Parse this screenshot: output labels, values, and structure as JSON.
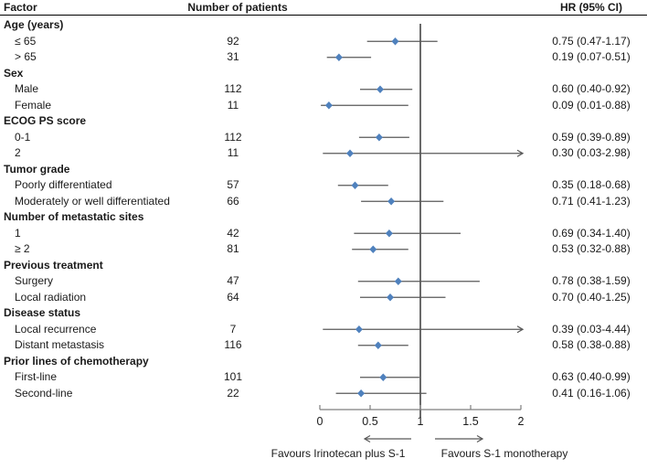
{
  "header": {
    "factor": "Factor",
    "patients": "Number of patients",
    "hr": "HR (95% CI)"
  },
  "colors": {
    "marker": "#4f81bd",
    "ci_line": "#595959",
    "ref_line": "#2b2b2b",
    "axis": "#7f7f7f",
    "arrow": "#595959",
    "text": "#1a1a1a"
  },
  "chart_data": {
    "type": "forest",
    "x_axis": {
      "min": 0,
      "max": 2,
      "ticks": [
        0,
        0.5,
        1,
        1.5,
        2
      ],
      "tick_labels": [
        "0",
        "0.5",
        "1",
        "1.5",
        "2"
      ],
      "ref_line": 1
    },
    "favours_left": "Favours Irinotecan plus S-1",
    "favours_right": "Favours S-1 monotherapy",
    "rows": [
      {
        "kind": "group",
        "label": "Age (years)"
      },
      {
        "kind": "item",
        "label": "≤ 65",
        "n": "92",
        "hr": 0.75,
        "lo": 0.47,
        "hi": 1.17,
        "hr_text": "0.75 (0.47-1.17)"
      },
      {
        "kind": "item",
        "label": "> 65",
        "n": "31",
        "hr": 0.19,
        "lo": 0.07,
        "hi": 0.51,
        "hr_text": "0.19 (0.07-0.51)"
      },
      {
        "kind": "group",
        "label": "Sex"
      },
      {
        "kind": "item",
        "label": "Male",
        "n": "112",
        "hr": 0.6,
        "lo": 0.4,
        "hi": 0.92,
        "hr_text": "0.60 (0.40-0.92)"
      },
      {
        "kind": "item",
        "label": "Female",
        "n": "11",
        "hr": 0.09,
        "lo": 0.01,
        "hi": 0.88,
        "hr_text": "0.09 (0.01-0.88)"
      },
      {
        "kind": "group",
        "label": "ECOG PS score"
      },
      {
        "kind": "item",
        "label": "0-1",
        "n": "112",
        "hr": 0.59,
        "lo": 0.39,
        "hi": 0.89,
        "hr_text": "0.59 (0.39-0.89)"
      },
      {
        "kind": "item",
        "label": "2",
        "n": "11",
        "hr": 0.3,
        "lo": 0.03,
        "hi": 2.98,
        "hr_text": "0.30 (0.03-2.98)"
      },
      {
        "kind": "group",
        "label": "Tumor grade"
      },
      {
        "kind": "item",
        "label": "Poorly differentiated",
        "n": "57",
        "hr": 0.35,
        "lo": 0.18,
        "hi": 0.68,
        "hr_text": "0.35 (0.18-0.68)"
      },
      {
        "kind": "item",
        "label": "Moderately or well differentiated",
        "n": "66",
        "hr": 0.71,
        "lo": 0.41,
        "hi": 1.23,
        "hr_text": "0.71 (0.41-1.23)"
      },
      {
        "kind": "group",
        "label": "Number of metastatic sites"
      },
      {
        "kind": "item",
        "label": "1",
        "n": "42",
        "hr": 0.69,
        "lo": 0.34,
        "hi": 1.4,
        "hr_text": "0.69 (0.34-1.40)"
      },
      {
        "kind": "item",
        "label": "≥ 2",
        "n": "81",
        "hr": 0.53,
        "lo": 0.32,
        "hi": 0.88,
        "hr_text": "0.53 (0.32-0.88)"
      },
      {
        "kind": "group",
        "label": "Previous treatment"
      },
      {
        "kind": "item",
        "label": "Surgery",
        "n": "47",
        "hr": 0.78,
        "lo": 0.38,
        "hi": 1.59,
        "hr_text": "0.78 (0.38-1.59)"
      },
      {
        "kind": "item",
        "label": "Local radiation",
        "n": "64",
        "hr": 0.7,
        "lo": 0.4,
        "hi": 1.25,
        "hr_text": "0.70 (0.40-1.25)"
      },
      {
        "kind": "group",
        "label": "Disease status"
      },
      {
        "kind": "item",
        "label": "Local recurrence",
        "n": "7",
        "hr": 0.39,
        "lo": 0.03,
        "hi": 4.44,
        "hr_text": "0.39 (0.03-4.44)"
      },
      {
        "kind": "item",
        "label": "Distant metastasis",
        "n": "116",
        "hr": 0.58,
        "lo": 0.38,
        "hi": 0.88,
        "hr_text": "0.58 (0.38-0.88)"
      },
      {
        "kind": "group",
        "label": "Prior lines of chemotherapy"
      },
      {
        "kind": "item",
        "label": "First-line",
        "n": "101",
        "hr": 0.63,
        "lo": 0.4,
        "hi": 0.99,
        "hr_text": "0.63 (0.40-0.99)"
      },
      {
        "kind": "item",
        "label": "Second-line",
        "n": "22",
        "hr": 0.41,
        "lo": 0.16,
        "hi": 1.06,
        "hr_text": "0.41 (0.16-1.06)"
      }
    ]
  }
}
